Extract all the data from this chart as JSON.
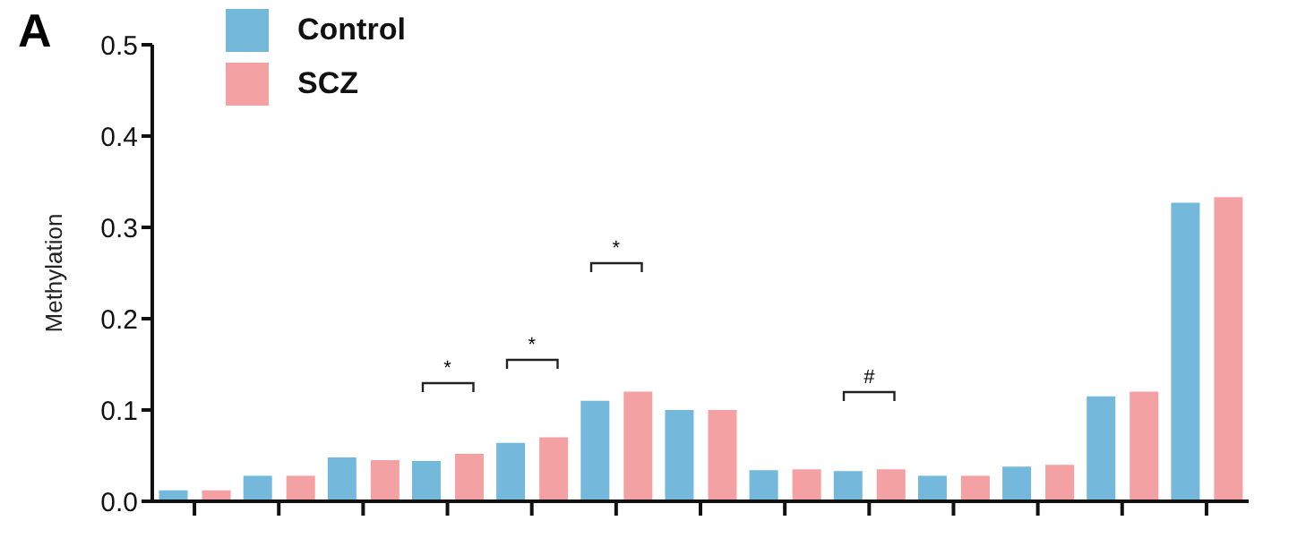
{
  "chart_data": {
    "type": "bar",
    "ylabel": "Methylation",
    "categories": [
      null,
      null,
      null,
      null,
      null,
      null,
      null,
      null,
      null,
      null,
      null,
      null,
      null
    ],
    "series": [
      {
        "name": "Control",
        "color": "#74b9dc",
        "values": [
          0.012,
          0.028,
          0.048,
          0.044,
          0.064,
          0.11,
          0.1,
          0.034,
          0.033,
          0.028,
          0.038,
          0.115,
          0.327
        ]
      },
      {
        "name": "SCZ",
        "color": "#f4a1a3",
        "values": [
          0.012,
          0.028,
          0.045,
          0.052,
          0.07,
          0.12,
          0.1,
          0.035,
          0.035,
          0.028,
          0.04,
          0.12,
          0.333
        ]
      }
    ],
    "ylim": [
      0,
      0.5
    ],
    "yticks": [
      {
        "value": 0,
        "label": "0.0"
      },
      0.1,
      0.2,
      0.3,
      0.4,
      0.5
    ],
    "legend": "top left",
    "annotations": [
      "A",
      "*",
      "*",
      "*",
      "#"
    ]
  }
}
